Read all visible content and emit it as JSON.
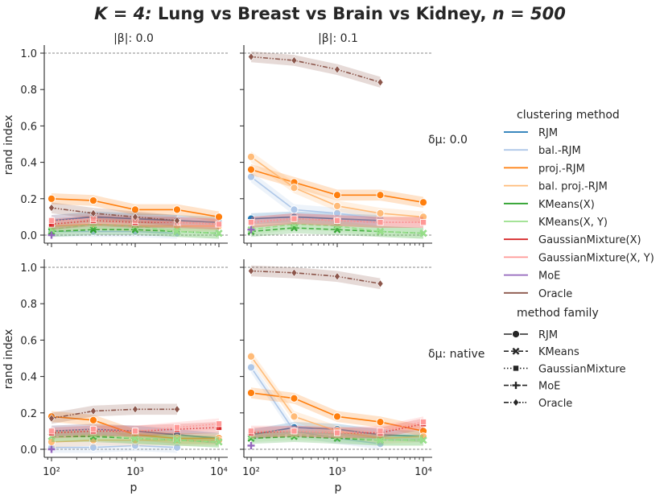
{
  "figure": {
    "title_prefix": "K = 4:",
    "title_main": " Lung vs Breast vs Brain vs Kidney, ",
    "title_suffix": "n = 500",
    "col_titles": [
      "|β|: 0.0",
      "|β|: 0.1"
    ],
    "row_titles": [
      "δμ: 0.0",
      "δμ: native"
    ],
    "xlabel": "p",
    "ylabel": "rand index",
    "yticks": [
      "0.0",
      "0.2",
      "0.4",
      "0.6",
      "0.8",
      "1.0"
    ],
    "xticks": [
      "10²",
      "10³",
      "10⁴"
    ]
  },
  "legend": {
    "title_method": "clustering method",
    "methods": [
      {
        "label": "RJM",
        "color": "#1f77b4"
      },
      {
        "label": "bal.-RJM",
        "color": "#aec7e8"
      },
      {
        "label": "proj.-RJM",
        "color": "#ff7f0e"
      },
      {
        "label": "bal. proj.-RJM",
        "color": "#ffbb78"
      },
      {
        "label": "KMeans(X)",
        "color": "#2ca02c"
      },
      {
        "label": "KMeans(X, Y)",
        "color": "#98df8a"
      },
      {
        "label": "GaussianMixture(X)",
        "color": "#d62728"
      },
      {
        "label": "GaussianMixture(X, Y)",
        "color": "#ff9896"
      },
      {
        "label": "MoE",
        "color": "#9467bd"
      },
      {
        "label": "Oracle",
        "color": "#8c564b"
      }
    ],
    "title_family": "method family",
    "families": [
      {
        "label": "RJM",
        "dash": "solid",
        "marker": "circle"
      },
      {
        "label": "KMeans",
        "dash": "dashed",
        "marker": "x"
      },
      {
        "label": "GaussianMixture",
        "dash": "dotted",
        "marker": "square"
      },
      {
        "label": "MoE",
        "dash": "dashdot",
        "marker": "plus"
      },
      {
        "label": "Oracle",
        "dash": "dashdotdot",
        "marker": "diamond"
      }
    ]
  },
  "chart_data": [
    {
      "type": "line",
      "panel": "beta-0.0 / delta-0.0",
      "x_scale": "log",
      "ylim": [
        -0.03,
        1.05
      ],
      "reference_line": 1.0,
      "series": [
        {
          "name": "RJM",
          "x": [
            100,
            316,
            1000,
            3162,
            10000
          ],
          "y": [
            0.08,
            0.1,
            0.09,
            0.08,
            0.07
          ]
        },
        {
          "name": "bal.-RJM",
          "x": [
            100,
            316,
            1000,
            3162
          ],
          "y": [
            0.02,
            0.02,
            0.02,
            0.01
          ]
        },
        {
          "name": "proj.-RJM",
          "x": [
            100,
            316,
            1000,
            3162,
            10000
          ],
          "y": [
            0.2,
            0.19,
            0.14,
            0.14,
            0.1
          ]
        },
        {
          "name": "bal. proj.-RJM",
          "x": [
            100,
            316,
            1000,
            3162,
            10000
          ],
          "y": [
            0.05,
            0.06,
            0.05,
            0.05,
            0.05
          ]
        },
        {
          "name": "KMeans(X)",
          "x": [
            100,
            316,
            1000,
            3162,
            10000
          ],
          "y": [
            0.02,
            0.03,
            0.03,
            0.02,
            0.01
          ]
        },
        {
          "name": "KMeans(X, Y)",
          "x": [
            100,
            316,
            1000,
            3162,
            10000
          ],
          "y": [
            0.03,
            0.06,
            0.05,
            0.02,
            0.01
          ]
        },
        {
          "name": "GaussianMixture(X)",
          "x": [
            100,
            316,
            1000,
            3162,
            10000
          ],
          "y": [
            0.06,
            0.08,
            0.07,
            0.07,
            0.06
          ]
        },
        {
          "name": "GaussianMixture(X, Y)",
          "x": [
            100,
            316,
            1000,
            3162,
            10000
          ],
          "y": [
            0.08,
            0.09,
            0.08,
            0.07,
            0.06
          ]
        },
        {
          "name": "MoE",
          "x": [
            100
          ],
          "y": [
            0.0
          ]
        },
        {
          "name": "Oracle",
          "x": [
            100,
            316,
            1000,
            3162
          ],
          "y": [
            0.15,
            0.12,
            0.1,
            0.08
          ]
        }
      ]
    },
    {
      "type": "line",
      "panel": "beta-0.1 / delta-0.0",
      "x_scale": "log",
      "ylim": [
        -0.03,
        1.05
      ],
      "reference_line": 1.0,
      "series": [
        {
          "name": "RJM",
          "x": [
            100,
            316,
            1000,
            3162
          ],
          "y": [
            0.09,
            0.1,
            0.09,
            0.08
          ]
        },
        {
          "name": "bal.-RJM",
          "x": [
            100,
            316,
            1000,
            3162
          ],
          "y": [
            0.32,
            0.14,
            0.12,
            0.09
          ]
        },
        {
          "name": "proj.-RJM",
          "x": [
            100,
            316,
            1000,
            3162,
            10000
          ],
          "y": [
            0.36,
            0.29,
            0.22,
            0.22,
            0.18
          ]
        },
        {
          "name": "bal. proj.-RJM",
          "x": [
            100,
            316,
            1000,
            3162,
            10000
          ],
          "y": [
            0.43,
            0.26,
            0.16,
            0.12,
            0.1
          ]
        },
        {
          "name": "KMeans(X)",
          "x": [
            100,
            316,
            1000,
            3162,
            10000
          ],
          "y": [
            0.02,
            0.04,
            0.03,
            0.02,
            0.01
          ]
        },
        {
          "name": "KMeans(X, Y)",
          "x": [
            100,
            316,
            1000,
            3162,
            10000
          ],
          "y": [
            0.03,
            0.06,
            0.05,
            0.02,
            0.01
          ]
        },
        {
          "name": "GaussianMixture(X)",
          "x": [
            100,
            316,
            1000,
            3162,
            10000
          ],
          "y": [
            0.07,
            0.09,
            0.08,
            0.07,
            0.07
          ]
        },
        {
          "name": "GaussianMixture(X, Y)",
          "x": [
            100,
            316,
            1000,
            3162,
            10000
          ],
          "y": [
            0.07,
            0.09,
            0.08,
            0.07,
            0.07
          ]
        },
        {
          "name": "MoE",
          "x": [
            100
          ],
          "y": [
            0.03
          ]
        },
        {
          "name": "Oracle",
          "x": [
            100,
            316,
            1000,
            3162
          ],
          "y": [
            0.98,
            0.96,
            0.91,
            0.84
          ]
        }
      ]
    },
    {
      "type": "line",
      "panel": "beta-0.0 / delta-native",
      "x_scale": "log",
      "ylim": [
        -0.03,
        1.05
      ],
      "reference_line": 1.0,
      "series": [
        {
          "name": "RJM",
          "x": [
            100,
            316,
            1000,
            3162,
            10000
          ],
          "y": [
            0.1,
            0.11,
            0.1,
            0.08,
            0.06
          ]
        },
        {
          "name": "bal.-RJM",
          "x": [
            100,
            316,
            1000,
            3162
          ],
          "y": [
            0.01,
            0.01,
            0.02,
            0.01
          ]
        },
        {
          "name": "proj.-RJM",
          "x": [
            100,
            316,
            1000,
            3162,
            10000
          ],
          "y": [
            0.18,
            0.16,
            0.08,
            0.06,
            0.06
          ]
        },
        {
          "name": "bal. proj.-RJM",
          "x": [
            100,
            316,
            1000,
            3162,
            10000
          ],
          "y": [
            0.04,
            0.05,
            0.05,
            0.05,
            0.05
          ]
        },
        {
          "name": "KMeans(X)",
          "x": [
            100,
            316,
            1000,
            3162,
            10000
          ],
          "y": [
            0.07,
            0.07,
            0.06,
            0.05,
            0.04
          ]
        },
        {
          "name": "KMeans(X, Y)",
          "x": [
            100,
            316,
            1000,
            3162,
            10000
          ],
          "y": [
            0.07,
            0.08,
            0.06,
            0.05,
            0.04
          ]
        },
        {
          "name": "GaussianMixture(X)",
          "x": [
            100,
            316,
            1000,
            3162,
            10000
          ],
          "y": [
            0.09,
            0.1,
            0.1,
            0.11,
            0.12
          ]
        },
        {
          "name": "GaussianMixture(X, Y)",
          "x": [
            100,
            316,
            1000,
            3162,
            10000
          ],
          "y": [
            0.1,
            0.11,
            0.1,
            0.12,
            0.14
          ]
        },
        {
          "name": "MoE",
          "x": [
            100
          ],
          "y": [
            0.0
          ]
        },
        {
          "name": "Oracle",
          "x": [
            100,
            316,
            1000,
            3162
          ],
          "y": [
            0.17,
            0.21,
            0.22,
            0.22
          ]
        }
      ]
    },
    {
      "type": "line",
      "panel": "beta-0.1 / delta-native",
      "x_scale": "log",
      "ylim": [
        -0.03,
        1.05
      ],
      "reference_line": 1.0,
      "series": [
        {
          "name": "RJM",
          "x": [
            100,
            316,
            1000,
            3162,
            10000
          ],
          "y": [
            0.08,
            0.12,
            0.11,
            0.08,
            0.07
          ]
        },
        {
          "name": "bal.-RJM",
          "x": [
            100,
            316,
            1000,
            3162
          ],
          "y": [
            0.45,
            0.1,
            0.06,
            0.03
          ]
        },
        {
          "name": "proj.-RJM",
          "x": [
            100,
            316,
            1000,
            3162,
            10000
          ],
          "y": [
            0.31,
            0.28,
            0.18,
            0.15,
            0.1
          ]
        },
        {
          "name": "bal. proj.-RJM",
          "x": [
            100,
            316,
            1000,
            3162,
            10000
          ],
          "y": [
            0.51,
            0.18,
            0.1,
            0.06,
            0.07
          ]
        },
        {
          "name": "KMeans(X)",
          "x": [
            100,
            316,
            1000,
            3162,
            10000
          ],
          "y": [
            0.06,
            0.07,
            0.06,
            0.05,
            0.05
          ]
        },
        {
          "name": "KMeans(X, Y)",
          "x": [
            100,
            316,
            1000,
            3162,
            10000
          ],
          "y": [
            0.07,
            0.08,
            0.07,
            0.05,
            0.05
          ]
        },
        {
          "name": "GaussianMixture(X)",
          "x": [
            100,
            316,
            1000,
            3162,
            10000
          ],
          "y": [
            0.09,
            0.1,
            0.09,
            0.09,
            0.14
          ]
        },
        {
          "name": "GaussianMixture(X, Y)",
          "x": [
            100,
            316,
            1000,
            3162,
            10000
          ],
          "y": [
            0.1,
            0.1,
            0.09,
            0.1,
            0.15
          ]
        },
        {
          "name": "MoE",
          "x": [
            100
          ],
          "y": [
            0.02
          ]
        },
        {
          "name": "Oracle",
          "x": [
            100,
            316,
            1000,
            3162
          ],
          "y": [
            0.98,
            0.97,
            0.95,
            0.91
          ]
        }
      ]
    }
  ]
}
